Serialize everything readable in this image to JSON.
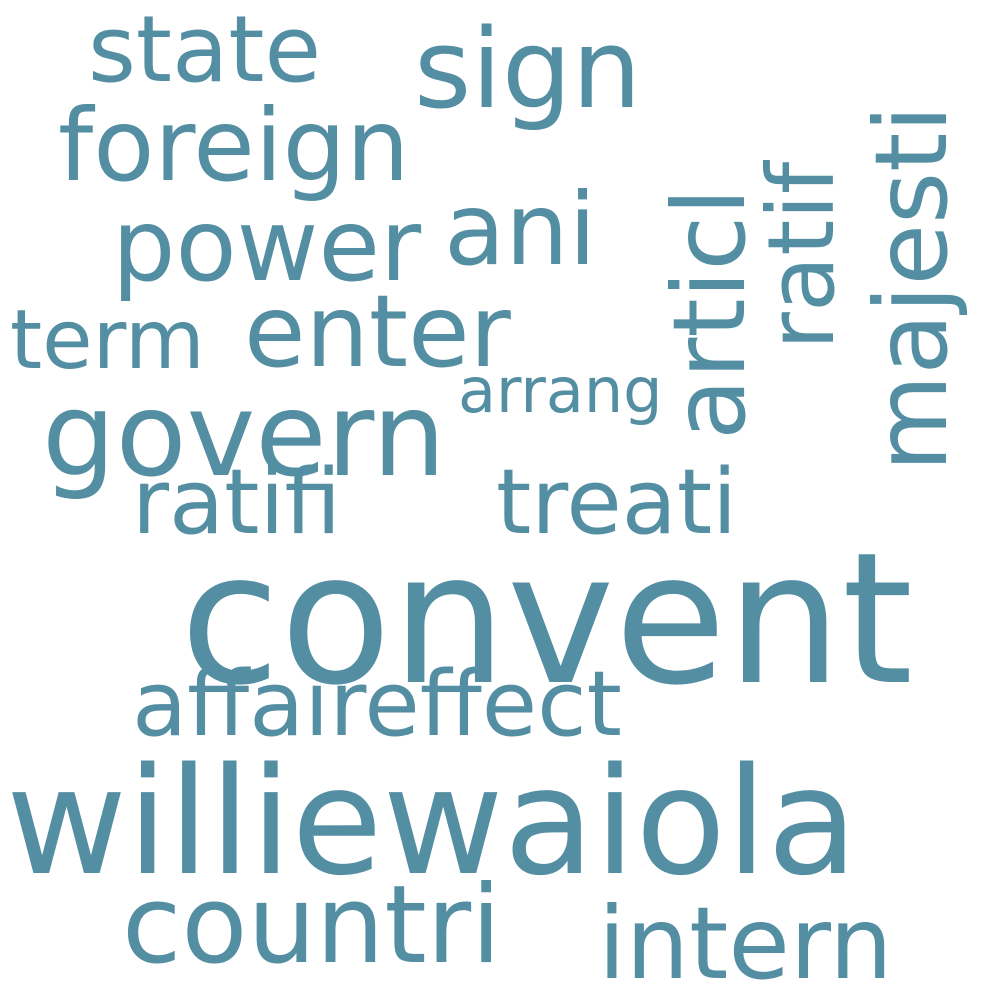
{
  "word_color": "#538ea2",
  "background": "#ffffff",
  "words": {
    "convent": "convent",
    "williewaiola": "williewaiola",
    "state": "state",
    "sign": "sign",
    "foreign": "foreign",
    "power": "power",
    "ani": "ani",
    "articl": "articl",
    "ratif": "ratif",
    "majesti": "majesti",
    "term": "term",
    "enter": "enter",
    "arrang": "arrang",
    "govern": "govern",
    "ratifi": "ratifi",
    "treati": "treati",
    "affaireffect": "affaireffect",
    "countri": "countri",
    "intern": "intern"
  }
}
